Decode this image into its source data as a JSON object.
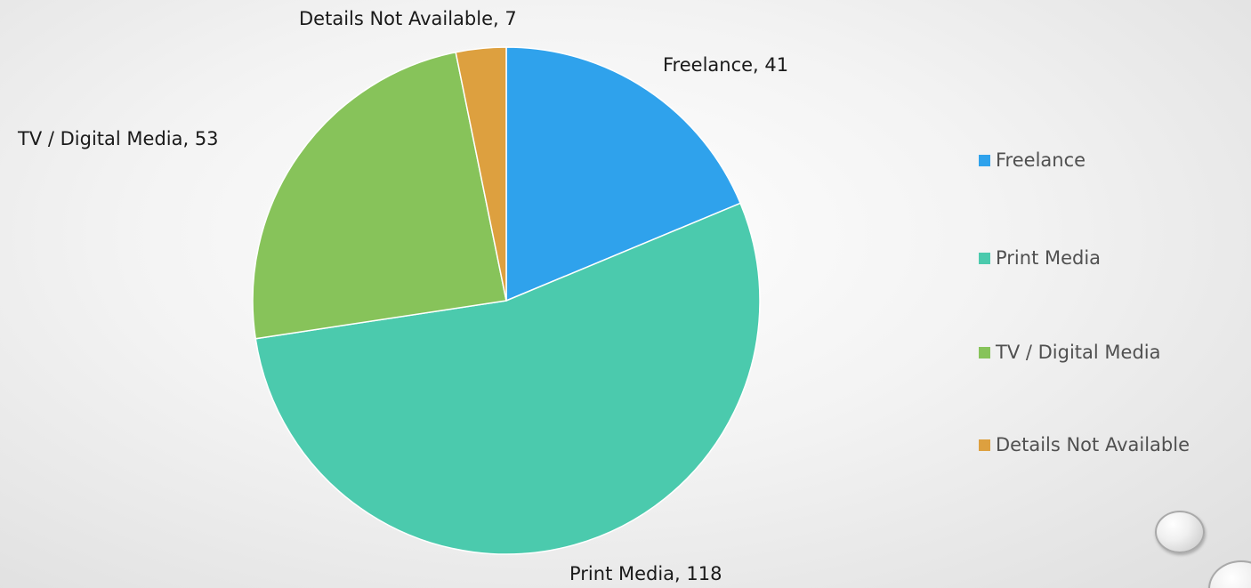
{
  "chart_data": {
    "type": "pie",
    "title": "",
    "slices": [
      {
        "label": "Freelance",
        "value": 41,
        "color": "#2FA2EC",
        "data_label": "Freelance, 41"
      },
      {
        "label": "Print Media",
        "value": 118,
        "color": "#4BCAAD",
        "data_label": "Print Media, 118"
      },
      {
        "label": "TV / Digital Media",
        "value": 53,
        "color": "#87C35A",
        "data_label": "TV / Digital Media, 53"
      },
      {
        "label": "Details Not Available",
        "value": 7,
        "color": "#DDA03F",
        "data_label": "Details Not Available, 7"
      }
    ],
    "start_angle": "12 o'clock",
    "direction": "clockwise",
    "legend_placement": "right"
  },
  "legend": {
    "items": [
      {
        "label": "Freelance",
        "color": "#2FA2EC"
      },
      {
        "label": "Print Media",
        "color": "#4BCAAD"
      },
      {
        "label": "TV / Digital Media",
        "color": "#87C35A"
      },
      {
        "label": "Details Not Available",
        "color": "#DDA03F"
      }
    ]
  }
}
